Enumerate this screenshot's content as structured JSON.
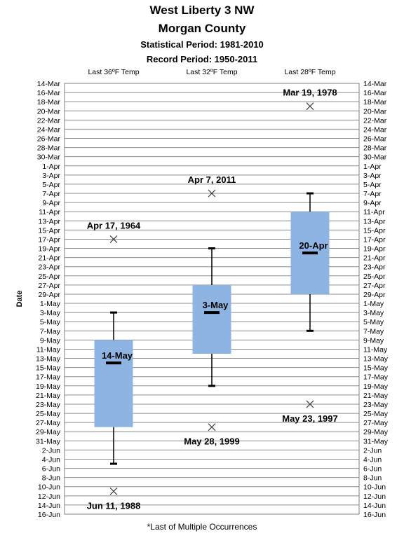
{
  "titles": {
    "line1": "West Liberty 3 NW",
    "line2": "Morgan County",
    "line3": "Statistical Period: 1981-2010",
    "line4": "Record Period: 1950-2011"
  },
  "footnote": "*Last of Multiple Occurrences",
  "chart_data": {
    "type": "box",
    "ylabel": "Date",
    "y_axis_ticks": [
      "14-Mar",
      "16-Mar",
      "18-Mar",
      "20-Mar",
      "22-Mar",
      "24-Mar",
      "26-Mar",
      "28-Mar",
      "30-Mar",
      "1-Apr",
      "3-Apr",
      "5-Apr",
      "7-Apr",
      "9-Apr",
      "11-Apr",
      "13-Apr",
      "15-Apr",
      "17-Apr",
      "19-Apr",
      "21-Apr",
      "23-Apr",
      "25-Apr",
      "27-Apr",
      "29-Apr",
      "1-May",
      "3-May",
      "5-May",
      "7-May",
      "9-May",
      "11-May",
      "13-May",
      "15-May",
      "17-May",
      "19-May",
      "21-May",
      "23-May",
      "25-May",
      "27-May",
      "29-May",
      "31-May",
      "2-Jun",
      "4-Jun",
      "6-Jun",
      "8-Jun",
      "10-Jun",
      "12-Jun",
      "14-Jun",
      "16-Jun"
    ],
    "y_range": [
      "14-Mar",
      "16-Jun"
    ],
    "y_reversed": true,
    "grid": true,
    "box_color": "#8EB4E3",
    "categories": [
      "Last 36ºF Temp",
      "Last 32ºF Temp",
      "Last 28ºF Temp"
    ],
    "boxes": [
      {
        "category": "Last 36ºF Temp",
        "whisker_low": "3-May",
        "q1": "9-May",
        "median": "14-May",
        "q3": "28-May",
        "whisker_high": "5-Jun",
        "median_label": "14-May",
        "record": "11-Jun",
        "record_label": "Jun 11, 1988"
      },
      {
        "category": "Last 32ºF Temp",
        "whisker_low": "19-Apr",
        "q1": "27-Apr",
        "median": "3-May",
        "q3": "12-May",
        "whisker_high": "19-May",
        "median_label": "3-May",
        "record_early": "7-Apr",
        "record_early_label": "Apr 7, 2011",
        "record": "28-May",
        "record_label": "May 28, 1999"
      },
      {
        "category": "Last 28ºF Temp",
        "whisker_low": "7-Apr",
        "q1": "11-Apr",
        "median": "20-Apr",
        "q3": "29-Apr",
        "whisker_high": "7-May",
        "median_label": "20-Apr",
        "record_early": "19-Mar",
        "record_early_label": "Mar 19, 1978",
        "record": "23-May",
        "record_label": "May 23, 1997"
      }
    ],
    "extra_records": [
      {
        "category": "Last 36ºF Temp",
        "date": "17-Apr",
        "label": "Apr 17, 1964"
      }
    ]
  }
}
